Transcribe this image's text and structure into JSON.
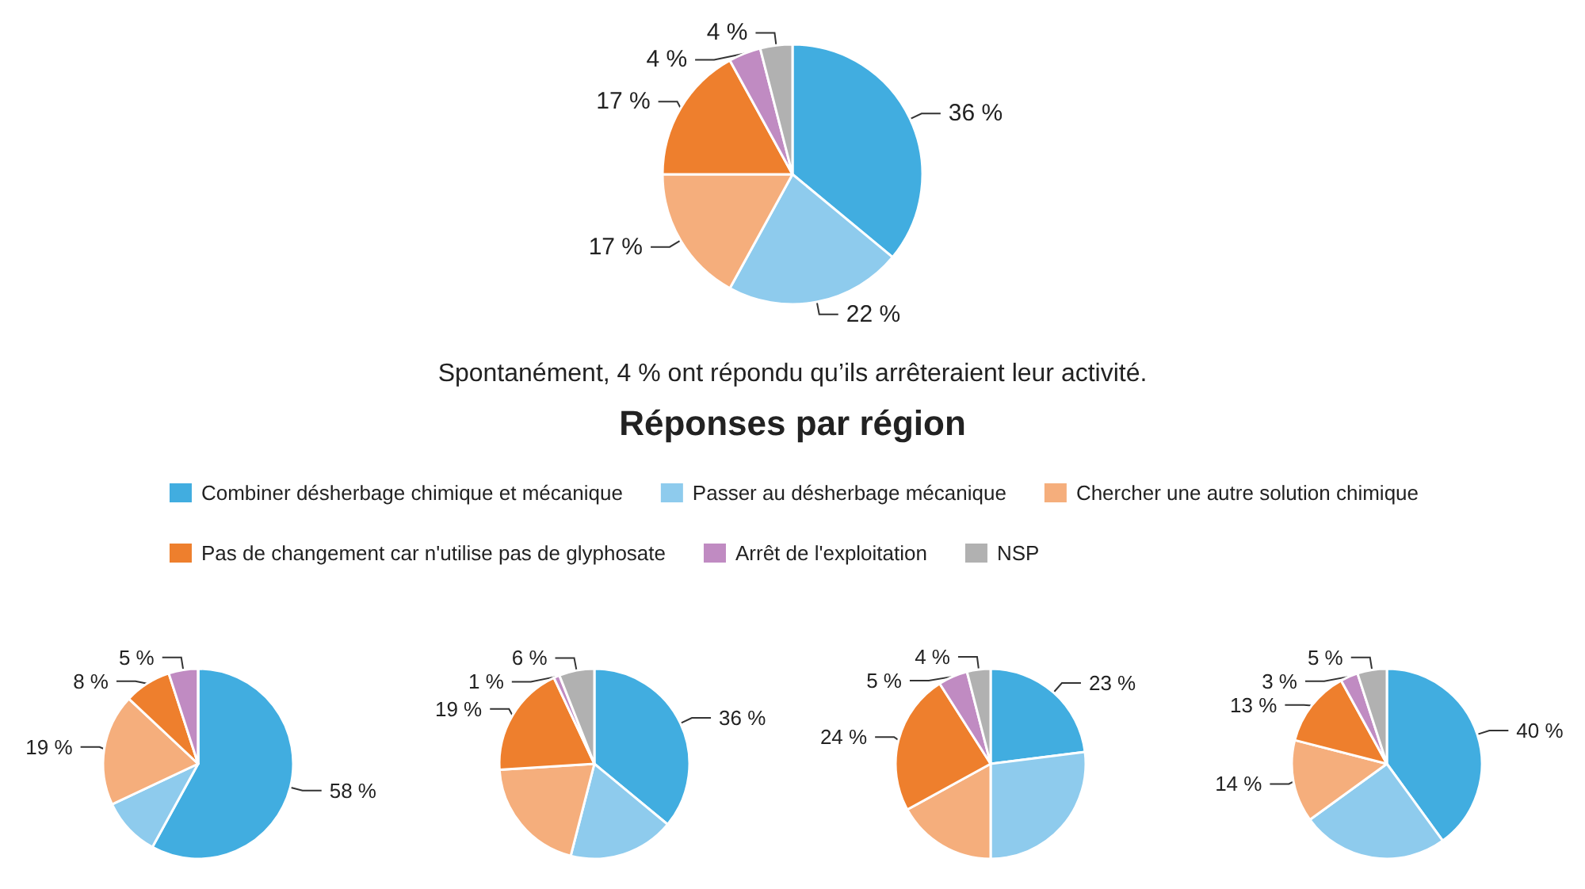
{
  "chart_data": [
    {
      "type": "pie",
      "legend": "bottom",
      "categories": [
        "Combiner désherbage chimique et mécanique",
        "Passer au désherbage mécanique",
        "Chercher une autre solution chimique",
        "Pas de changement car n'utilise pas de glyphosate",
        "Arrêt de l'exploitation",
        "NSP"
      ],
      "values": [
        36,
        22,
        17,
        17,
        4,
        4
      ],
      "colors": [
        "#41ade0",
        "#8ecbed",
        "#f5ae7c",
        "#ee7f2d",
        "#c08bc2",
        "#b1b1b1"
      ],
      "value_labels": [
        "36 %",
        "22 %",
        "17 %",
        "17 %",
        "4 %",
        "4 %"
      ],
      "annotations": [
        "Spontanément, 4 % ont répondu qu’ils arrêteraient leur activité.",
        "Réponses par région"
      ]
    },
    {
      "type": "pie",
      "categories": [
        null,
        null,
        null,
        null,
        null,
        null
      ],
      "values": [
        58,
        10,
        19,
        8,
        5,
        0
      ],
      "colors": [
        "#41ade0",
        "#8ecbed",
        "#f5ae7c",
        "#ee7f2d",
        "#c08bc2",
        "#b1b1b1"
      ],
      "value_labels": [
        "58 %",
        null,
        "19 %",
        "8 %",
        "5 %",
        null
      ]
    },
    {
      "type": "pie",
      "categories": [
        null,
        null,
        null,
        null,
        null,
        null
      ],
      "values": [
        36,
        18,
        20,
        19,
        1,
        6
      ],
      "colors": [
        "#41ade0",
        "#8ecbed",
        "#f5ae7c",
        "#ee7f2d",
        "#c08bc2",
        "#b1b1b1"
      ],
      "value_labels": [
        "36 %",
        null,
        null,
        "19 %",
        "1 %",
        "6 %"
      ]
    },
    {
      "type": "pie",
      "categories": [
        null,
        null,
        null,
        null,
        null,
        null
      ],
      "values": [
        23,
        27,
        17,
        24,
        5,
        4
      ],
      "colors": [
        "#41ade0",
        "#8ecbed",
        "#f5ae7c",
        "#ee7f2d",
        "#c08bc2",
        "#b1b1b1"
      ],
      "value_labels": [
        "23 %",
        null,
        null,
        "24 %",
        "5 %",
        "4 %"
      ]
    },
    {
      "type": "pie",
      "categories": [
        null,
        null,
        null,
        null,
        null,
        null
      ],
      "values": [
        40,
        25,
        14,
        13,
        3,
        5
      ],
      "colors": [
        "#41ade0",
        "#8ecbed",
        "#f5ae7c",
        "#ee7f2d",
        "#c08bc2",
        "#b1b1b1"
      ],
      "value_labels": [
        "40 %",
        null,
        "14 %",
        "13 %",
        "3 %",
        "5 %"
      ]
    }
  ]
}
